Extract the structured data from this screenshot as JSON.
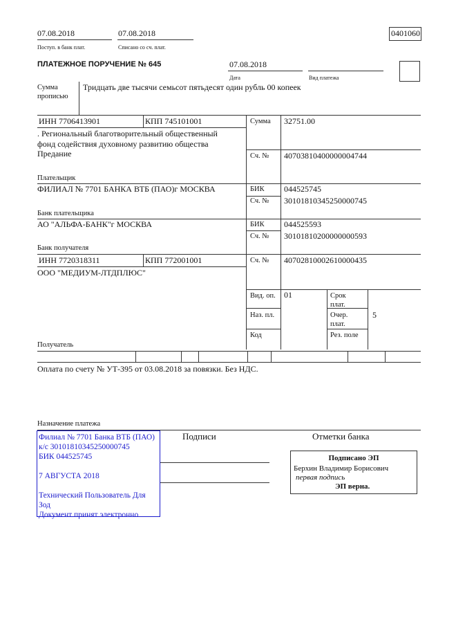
{
  "header": {
    "received_date": "07.08.2018",
    "received_label": "Поступ. в банк плат.",
    "debited_date": "07.08.2018",
    "debited_label": "Списано со сч. плат.",
    "form_code": "0401060"
  },
  "title": "ПЛАТЕЖНОЕ ПОРУЧЕНИЕ № 645",
  "date": "07.08.2018",
  "date_label": "Дата",
  "payment_type_label": "Вид платежа",
  "amount_words_label": [
    "Сумма",
    "прописью"
  ],
  "amount_words": "Тридцать две тысячи семьсот пятьдесят один рубль 00 копеек",
  "payer": {
    "inn": "ИНН 7706413901",
    "kpp": "КПП 745101001",
    "name": [
      ". Региональный благотворительный общественный",
      "фонд содействия духовному развитию общества",
      "Предание"
    ],
    "label": "Плательщик",
    "sum_label": "Сумма",
    "sum": "32751.00",
    "account_label": "Сч. №",
    "account": "40703810400000004744"
  },
  "payer_bank": {
    "name": "ФИЛИАЛ № 7701 БАНКА ВТБ (ПАО)г МОСКВА",
    "label": "Банк плательщика",
    "bik_label": "БИК",
    "bik": "044525745",
    "account_label": "Сч. №",
    "account": "30101810345250000745"
  },
  "payee_bank": {
    "name": "АО \"АЛЬФА-БАНК\"г МОСКВА",
    "label": "Банк получателя",
    "bik_label": "БИК",
    "bik": "044525593",
    "account_label": "Сч. №",
    "account": "30101810200000000593"
  },
  "payee": {
    "inn": "ИНН 7720318311",
    "kpp": "КПП 772001001",
    "name": "ООО \"МЕДИУМ-ЛТДПЛЮС\"",
    "label": "Получатель",
    "account_label": "Сч. №",
    "account": "40702810002610000435"
  },
  "details": {
    "op_type_label": "Вид. оп.",
    "op_type": "01",
    "purpose_code_label": "Наз. пл.",
    "code_label": "Код",
    "due_label": [
      "Срок",
      "плат."
    ],
    "priority_label": [
      "Очер.",
      "плат."
    ],
    "priority": "5",
    "reserve_label": "Рез. поле"
  },
  "purpose": "Оплата по счету № УТ-395 от 03.08.2018 за повязки. Без НДС.",
  "purpose_label": "Назначение платежа",
  "bank_stamp": [
    "Филиал № 7701 Банка ВТБ (ПАО)",
    "к/с 30101810345250000745",
    "БИК 044525745",
    "",
    "7 АВГУСТА 2018",
    "",
    "Технический Пользователь Для",
    "Зод",
    "Документ принят электронно"
  ],
  "signatures_label": "Подписи",
  "bank_marks_label": "Отметки банка",
  "esign": {
    "title": "Подписано ЭП",
    "name": "Берхин Владимир Борисович",
    "role": "первая подпись",
    "status": "ЭП верна."
  },
  "colors": {
    "stamp": "#1a1acc"
  }
}
